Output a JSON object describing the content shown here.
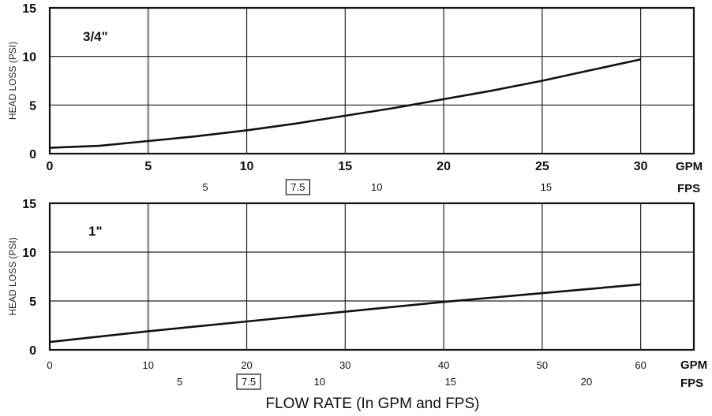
{
  "xlabel": "FLOW RATE (In GPM and FPS)",
  "chart_data": [
    {
      "type": "line",
      "title": "3/4\"",
      "ylabel": "HEAD LOSS (PSI)",
      "xlim": [
        0,
        32.7
      ],
      "ylim": [
        0,
        15
      ],
      "x_ticks": [
        0,
        5,
        10,
        15,
        20,
        25,
        30
      ],
      "x_unit": "GPM",
      "y_ticks": [
        0,
        5,
        10,
        15
      ],
      "fps_ticks": [
        {
          "label": "5",
          "gpm": 7.9,
          "boxed": false
        },
        {
          "label": "7.5",
          "gpm": 12.6,
          "boxed": true
        },
        {
          "label": "10",
          "gpm": 16.6,
          "boxed": false
        },
        {
          "label": "15",
          "gpm": 25.2,
          "boxed": false
        }
      ],
      "fps_unit": "FPS",
      "grid": true,
      "highlight_x": 5,
      "series": [
        {
          "x": [
            0,
            2.5,
            5,
            7.5,
            10,
            12.5,
            15,
            17.5,
            20,
            22.5,
            25,
            27.5,
            30
          ],
          "y": [
            0.6,
            0.8,
            1.3,
            1.8,
            2.4,
            3.1,
            3.9,
            4.7,
            5.6,
            6.5,
            7.5,
            8.6,
            9.7
          ]
        }
      ]
    },
    {
      "type": "line",
      "title": "1\"",
      "ylabel": "HEAD LOSS (PSI)",
      "xlim": [
        0,
        65.4
      ],
      "ylim": [
        0,
        15
      ],
      "x_ticks": [
        0,
        10,
        20,
        30,
        40,
        50,
        60
      ],
      "x_unit": "GPM",
      "y_ticks": [
        0,
        5,
        10,
        15
      ],
      "fps_ticks": [
        {
          "label": "5",
          "gpm": 13.2,
          "boxed": false
        },
        {
          "label": "7.5",
          "gpm": 20.2,
          "boxed": true
        },
        {
          "label": "10",
          "gpm": 27.4,
          "boxed": false
        },
        {
          "label": "15",
          "gpm": 40.7,
          "boxed": false
        },
        {
          "label": "20",
          "gpm": 54.5,
          "boxed": false
        }
      ],
      "fps_unit": "FPS",
      "grid": true,
      "highlight_x": 10,
      "series": [
        {
          "x": [
            0,
            10,
            20,
            30,
            40,
            50,
            60
          ],
          "y": [
            0.8,
            1.9,
            2.9,
            3.9,
            4.9,
            5.8,
            6.7
          ]
        }
      ]
    }
  ]
}
